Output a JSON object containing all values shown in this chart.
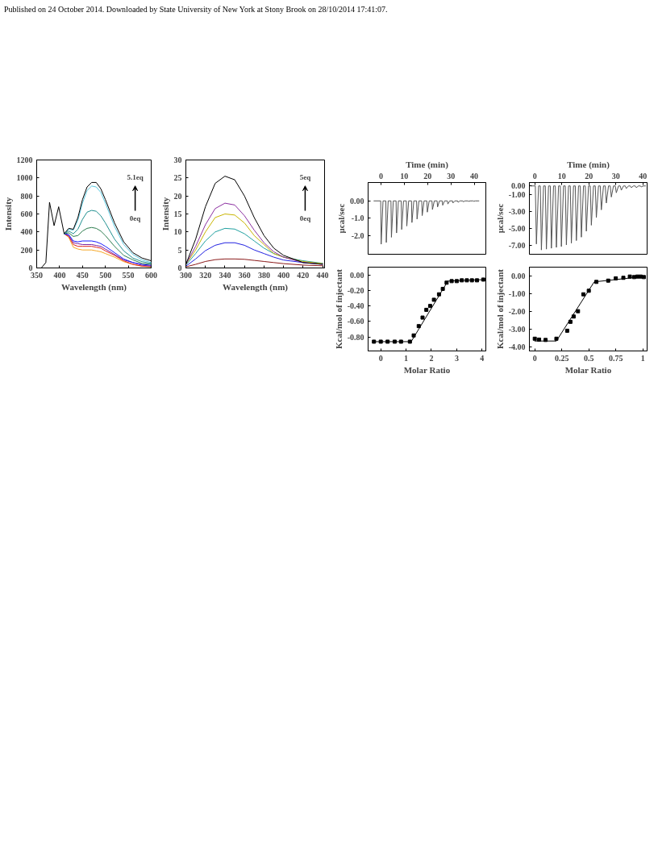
{
  "chart_data": [
    {
      "type": "line",
      "xlabel": "Wavelength (nm)",
      "ylabel": "Intensity",
      "xlim": [
        350,
        600
      ],
      "xticks": [
        350,
        400,
        450,
        500,
        550,
        600
      ],
      "ylim": [
        0,
        1200
      ],
      "yticks": [
        0,
        200,
        400,
        600,
        800,
        1000,
        1200
      ],
      "grid": false,
      "annotations": [
        "5.1eq",
        "0eq",
        "Published on 24 October 2014. Downloaded by State University of New York at Stony Brook on 28/10/2014 17:41:07."
      ],
      "x": [
        350,
        360,
        370,
        378,
        388,
        398,
        410,
        420,
        430,
        440,
        450,
        460,
        470,
        480,
        490,
        500,
        520,
        540,
        560,
        580,
        600
      ],
      "series": [
        {
          "color": "#f5a623",
          "x": [
            410,
            420,
            430,
            440,
            450,
            460,
            470,
            480,
            490,
            500,
            520,
            540,
            560,
            580,
            600
          ],
          "values": [
            380,
            340,
            230,
            210,
            200,
            200,
            200,
            190,
            180,
            160,
            120,
            70,
            40,
            20,
            10
          ]
        },
        {
          "color": "#e0201c",
          "x": [
            410,
            420,
            430,
            440,
            450,
            460,
            470,
            480,
            490,
            500,
            520,
            540,
            560,
            580,
            600
          ],
          "values": [
            380,
            350,
            260,
            240,
            240,
            240,
            240,
            230,
            220,
            190,
            140,
            80,
            40,
            20,
            20
          ]
        },
        {
          "color": "#7a1fa0",
          "x": [
            410,
            420,
            430,
            440,
            450,
            460,
            470,
            480,
            490,
            500,
            520,
            540,
            560,
            580,
            600
          ],
          "values": [
            380,
            360,
            280,
            270,
            260,
            260,
            260,
            250,
            240,
            210,
            150,
            90,
            60,
            30,
            20
          ]
        },
        {
          "color": "#1a1aff",
          "x": [
            410,
            420,
            430,
            440,
            450,
            460,
            470,
            480,
            490,
            500,
            520,
            540,
            560,
            580,
            600
          ],
          "values": [
            380,
            370,
            300,
            290,
            300,
            300,
            300,
            290,
            270,
            240,
            170,
            100,
            60,
            40,
            30
          ]
        },
        {
          "color": "#2e7d4f",
          "x": [
            410,
            420,
            430,
            440,
            450,
            460,
            470,
            480,
            490,
            500,
            520,
            540,
            560,
            580,
            600
          ],
          "values": [
            380,
            390,
            350,
            360,
            410,
            440,
            450,
            440,
            410,
            360,
            240,
            140,
            90,
            50,
            40
          ]
        },
        {
          "color": "#1f8f8f",
          "x": [
            410,
            420,
            430,
            440,
            450,
            460,
            470,
            480,
            490,
            500,
            520,
            540,
            560,
            580,
            600
          ],
          "values": [
            380,
            410,
            380,
            430,
            540,
            620,
            640,
            630,
            580,
            500,
            320,
            190,
            110,
            70,
            50
          ]
        },
        {
          "color": "#5bc8e0",
          "x": [
            410,
            420,
            430,
            440,
            450,
            460,
            470,
            480,
            490,
            500,
            520,
            540,
            560,
            580,
            600
          ],
          "values": [
            380,
            430,
            420,
            530,
            720,
            860,
            910,
            900,
            840,
            720,
            460,
            260,
            150,
            90,
            60
          ]
        },
        {
          "color": "#000000",
          "values": [
            0,
            0,
            60,
            730,
            470,
            680,
            380,
            440,
            430,
            560,
            760,
            900,
            950,
            950,
            880,
            760,
            500,
            290,
            170,
            110,
            80
          ]
        }
      ]
    },
    {
      "type": "line",
      "xlabel": "Wavelength (nm)",
      "ylabel": "Intensity",
      "xlim": [
        300,
        442
      ],
      "xticks": [
        300,
        320,
        340,
        360,
        380,
        400,
        420,
        440
      ],
      "ylim": [
        0,
        30
      ],
      "yticks": [
        0,
        5,
        10,
        15,
        20,
        25,
        30
      ],
      "grid": false,
      "annotations": [
        "5eq",
        "0eq"
      ],
      "x": [
        300,
        310,
        320,
        330,
        340,
        350,
        360,
        370,
        380,
        390,
        400,
        420,
        440
      ],
      "series": [
        {
          "color": "#8b1a1a",
          "values": [
            0.3,
            1,
            1.8,
            2.3,
            2.5,
            2.5,
            2.4,
            2.1,
            1.8,
            1.5,
            1.2,
            0.8,
            0.6
          ]
        },
        {
          "color": "#2020e0",
          "values": [
            0.5,
            2.5,
            4.8,
            6.3,
            7,
            7,
            6.3,
            5,
            4,
            3,
            2.2,
            1.5,
            1.2
          ]
        },
        {
          "color": "#20a0a0",
          "values": [
            0.8,
            4,
            7.5,
            10,
            11,
            10.8,
            9.5,
            7.5,
            5.5,
            4,
            3,
            2,
            1.3
          ]
        },
        {
          "color": "#c8b400",
          "values": [
            1,
            5,
            10,
            14,
            15,
            14.7,
            12.5,
            9,
            6.5,
            4,
            3,
            1.8,
            1.2
          ]
        },
        {
          "color": "#8b2fa0",
          "values": [
            1,
            6,
            12,
            16.5,
            18,
            17.5,
            14.5,
            10.5,
            7,
            4.5,
            3,
            1.5,
            1
          ]
        },
        {
          "color": "#000000",
          "values": [
            1,
            8,
            17,
            23.5,
            25.5,
            24.5,
            20,
            14,
            9,
            5.5,
            3.5,
            1.5,
            1
          ]
        }
      ]
    },
    {
      "type": "line",
      "xlabel": "Time (min)",
      "ylabel": "μcal/sec",
      "xlim": [
        -5.5,
        45
      ],
      "xticks": [
        0,
        10,
        20,
        30,
        40
      ],
      "ylim": [
        -3.08,
        1.06
      ],
      "yticks": [
        {
          "value": 0,
          "label": "0.00"
        },
        {
          "value": -1,
          "label": "-1.0"
        },
        {
          "value": -2,
          "label": "-2.0"
        }
      ],
      "grid": false,
      "series": [
        {
          "color": "#555555",
          "x": [
            -3,
            -0.1,
            0.1,
            0.9,
            2.1,
            2.3,
            3.1,
            4.3,
            4.5,
            5.3,
            6.5,
            6.7,
            7.5,
            8.7,
            8.9,
            9.7,
            10.9,
            11.1,
            11.9,
            13.1,
            13.3,
            14.1,
            15.3,
            15.5,
            16.3,
            17.5,
            17.7,
            18.5,
            19.7,
            19.9,
            20.7,
            21.9,
            22.1,
            22.9,
            24.1,
            24.3,
            25.1,
            26.3,
            26.5,
            27.3,
            28.5,
            28.7,
            29.5,
            30.7,
            30.9,
            31.7,
            32.9,
            33.1,
            33.9,
            35.1,
            35.3,
            36.1,
            37.3,
            37.5,
            38.3,
            39.5,
            39.7,
            40.5,
            42
          ],
          "values": [
            0,
            0,
            -2.5,
            0,
            0,
            -2.4,
            0,
            0,
            -2.1,
            0,
            0,
            -1.85,
            0,
            0,
            -1.65,
            0,
            0,
            -1.45,
            0,
            0,
            -1.25,
            0,
            0,
            -1.05,
            0,
            0,
            -0.85,
            0,
            0,
            -0.65,
            0,
            0,
            -0.5,
            0,
            0,
            -0.35,
            0,
            0,
            -0.25,
            0,
            0,
            -0.18,
            0,
            0,
            -0.12,
            0,
            0,
            -0.08,
            0,
            0,
            -0.05,
            0,
            0,
            -0.03,
            0,
            0,
            -0.02,
            0,
            0
          ]
        }
      ]
    },
    {
      "type": "scatter",
      "xlabel": "Molar Ratio",
      "ylabel": "Kcal/mol of injectant",
      "xlim": [
        -0.5,
        4.15
      ],
      "xticks": [
        0,
        1,
        2,
        3,
        4
      ],
      "ylim": [
        -0.98,
        0.1
      ],
      "yticks": [
        {
          "value": 0,
          "label": "0.00"
        },
        {
          "value": -0.2,
          "label": "-0.20"
        },
        {
          "value": -0.4,
          "label": "-0.40"
        },
        {
          "value": -0.6,
          "label": "-0.60"
        },
        {
          "value": -0.8,
          "label": "-0.80"
        }
      ],
      "grid": false,
      "series": [
        {
          "type": "scatter",
          "marker": "square",
          "color": "#000000",
          "x": [
            -0.27,
            0,
            0.27,
            0.55,
            0.8,
            1.15,
            1.3,
            1.5,
            1.65,
            1.8,
            1.95,
            2.1,
            2.3,
            2.45,
            2.6,
            2.8,
            3.0,
            3.2,
            3.4,
            3.6,
            3.8,
            4.05
          ],
          "values": [
            -0.86,
            -0.86,
            -0.86,
            -0.86,
            -0.86,
            -0.86,
            -0.78,
            -0.66,
            -0.55,
            -0.45,
            -0.4,
            -0.32,
            -0.25,
            -0.18,
            -0.1,
            -0.08,
            -0.08,
            -0.07,
            -0.07,
            -0.07,
            -0.07,
            -0.06
          ]
        },
        {
          "type": "line",
          "color": "#000000",
          "x": [
            -0.3,
            1.2,
            2.65,
            4.1
          ],
          "values": [
            -0.86,
            -0.86,
            -0.08,
            -0.06
          ]
        }
      ]
    },
    {
      "type": "line",
      "xlabel": "Time (min)",
      "ylabel": "μcal/sec",
      "xlim": [
        -2,
        41.6
      ],
      "xticks": [
        0,
        10,
        20,
        30,
        40
      ],
      "ylim": [
        -8.0,
        0.4
      ],
      "yticks": [
        {
          "value": 0,
          "label": "0.00"
        },
        {
          "value": -1,
          "label": "-1.00"
        },
        {
          "value": -3,
          "label": "-3.00"
        },
        {
          "value": -5,
          "label": "-5.00"
        },
        {
          "value": -7,
          "label": "-7.00"
        }
      ],
      "grid": false,
      "series": [
        {
          "color": "#555555",
          "x": [
            -1.5,
            0.2,
            0.6,
            1.4,
            2.05,
            2.45,
            3.25,
            3.9,
            4.3,
            5.1,
            5.75,
            6.15,
            6.95,
            7.6,
            8,
            8.8,
            9.45,
            9.85,
            10.65,
            11.3,
            11.7,
            12.5,
            13.15,
            13.55,
            14.35,
            15,
            15.4,
            16.2,
            16.85,
            17.25,
            18.05,
            18.7,
            19.1,
            19.9,
            20.55,
            20.95,
            21.75,
            22.4,
            22.8,
            23.6,
            24.25,
            24.65,
            25.45,
            26.1,
            26.5,
            27.3,
            27.95,
            28.35,
            29.15,
            29.8,
            30.2,
            31,
            31.65,
            32.05,
            32.85,
            33.5,
            33.9,
            34.7,
            35.35,
            35.75,
            36.55,
            37.2,
            37.6,
            38.4,
            39.05,
            39.45,
            40.25,
            41
          ],
          "values": [
            0,
            0,
            -6.8,
            0,
            0,
            -7.5,
            0,
            0,
            -7.4,
            0,
            0,
            -7.3,
            0,
            0,
            -7.2,
            0,
            0,
            -7.1,
            0,
            0,
            -6.9,
            0,
            0,
            -6.7,
            0,
            0,
            -6.4,
            0,
            0,
            -6.0,
            0,
            0,
            -5.3,
            0,
            0,
            -4.6,
            0,
            0,
            -3.7,
            0,
            0,
            -2.8,
            0,
            0,
            -2.0,
            0,
            0,
            -1.3,
            0,
            0,
            -0.8,
            0,
            0,
            -0.5,
            0,
            0,
            -0.3,
            0,
            0,
            -0.2,
            0,
            0,
            -0.2,
            0,
            0,
            -0.1,
            0,
            0
          ]
        }
      ]
    },
    {
      "type": "scatter",
      "xlabel": "Molar Ratio",
      "ylabel": "Kcal/mol of injectant",
      "xlim": [
        -0.05,
        1.04
      ],
      "xticks": [
        0,
        0.25,
        0.5,
        0.75,
        1
      ],
      "ylim": [
        -4.24,
        0.48
      ],
      "yticks": [
        {
          "value": 0,
          "label": "0.00"
        },
        {
          "value": -1,
          "label": "-1.00"
        },
        {
          "value": -2,
          "label": "-2.00"
        },
        {
          "value": -3,
          "label": "-3.00"
        },
        {
          "value": -4,
          "label": "-4.00"
        }
      ],
      "grid": false,
      "series": [
        {
          "type": "scatter",
          "marker": "square",
          "color": "#000000",
          "x": [
            0,
            0.04,
            0.1,
            0.2,
            0.3,
            0.33,
            0.36,
            0.4,
            0.45,
            0.5,
            0.57,
            0.68,
            0.75,
            0.82,
            0.88,
            0.92,
            0.95,
            0.98,
            1.01
          ],
          "values": [
            -3.55,
            -3.6,
            -3.62,
            -3.55,
            -3.1,
            -2.6,
            -2.3,
            -2.0,
            -1.05,
            -0.85,
            -0.35,
            -0.28,
            -0.15,
            -0.12,
            -0.05,
            -0.08,
            -0.05,
            -0.05,
            -0.08
          ]
        },
        {
          "type": "line",
          "color": "#000000",
          "x": [
            0,
            0.2,
            0.55,
            1.01
          ],
          "values": [
            -3.68,
            -3.68,
            -0.35,
            -0.05
          ]
        }
      ]
    }
  ]
}
